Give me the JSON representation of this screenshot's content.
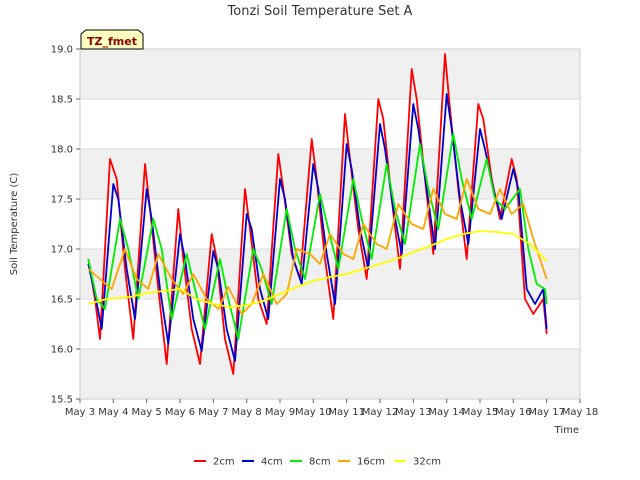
{
  "chart_data": {
    "type": "line",
    "title": "Tonzi Soil Temperature Set A",
    "xlabel": "Time",
    "ylabel": "Soil Temperature (C)",
    "tag": "TZ_fmet",
    "xlim": [
      3,
      18
    ],
    "ylim": [
      15.5,
      19.0
    ],
    "xticks": [
      {
        "value": 3,
        "label": "May 3"
      },
      {
        "value": 4,
        "label": "May 4"
      },
      {
        "value": 5,
        "label": "May 5"
      },
      {
        "value": 6,
        "label": "May 6"
      },
      {
        "value": 7,
        "label": "May 7"
      },
      {
        "value": 8,
        "label": "May 8"
      },
      {
        "value": 9,
        "label": "May 9"
      },
      {
        "value": 10,
        "label": "May 10"
      },
      {
        "value": 11,
        "label": "May 11"
      },
      {
        "value": 12,
        "label": "May 12"
      },
      {
        "value": 13,
        "label": "May 13"
      },
      {
        "value": 14,
        "label": "May 14"
      },
      {
        "value": 15,
        "label": "May 15"
      },
      {
        "value": 16,
        "label": "May 16"
      },
      {
        "value": 17,
        "label": "May 17"
      },
      {
        "value": 18,
        "label": "May 18"
      }
    ],
    "yticks": [
      {
        "value": 15.5,
        "label": "15.5"
      },
      {
        "value": 16.0,
        "label": "16.0"
      },
      {
        "value": 16.5,
        "label": "16.5"
      },
      {
        "value": 17.0,
        "label": "17.0"
      },
      {
        "value": 17.5,
        "label": "17.5"
      },
      {
        "value": 18.0,
        "label": "18.0"
      },
      {
        "value": 18.5,
        "label": "18.5"
      },
      {
        "value": 19.0,
        "label": "19.0"
      }
    ],
    "grid": true,
    "legend_position": "bottom",
    "series": [
      {
        "name": "2cm",
        "color": "#ff0000",
        "x": [
          3.25,
          3.45,
          3.6,
          3.9,
          4.1,
          4.35,
          4.6,
          4.95,
          5.1,
          5.35,
          5.6,
          5.95,
          6.1,
          6.35,
          6.6,
          6.95,
          7.1,
          7.35,
          7.6,
          7.95,
          8.1,
          8.35,
          8.6,
          8.95,
          9.1,
          9.35,
          9.6,
          9.95,
          10.1,
          10.35,
          10.6,
          10.95,
          11.1,
          11.35,
          11.6,
          11.95,
          12.1,
          12.35,
          12.6,
          12.95,
          13.1,
          13.35,
          13.6,
          13.95,
          14.1,
          14.35,
          14.6,
          14.95,
          15.1,
          15.35,
          15.6,
          15.95,
          16.1,
          16.35,
          16.6,
          16.9,
          17.0
        ],
        "y": [
          16.9,
          16.5,
          16.1,
          17.9,
          17.7,
          16.8,
          16.1,
          17.85,
          17.4,
          16.6,
          15.85,
          17.4,
          16.9,
          16.2,
          15.85,
          17.15,
          16.9,
          16.1,
          15.75,
          17.6,
          17.2,
          16.5,
          16.25,
          17.95,
          17.6,
          16.95,
          16.7,
          18.1,
          17.7,
          16.9,
          16.3,
          18.35,
          17.9,
          17.2,
          16.7,
          18.5,
          18.3,
          17.5,
          16.8,
          18.8,
          18.5,
          17.7,
          16.95,
          18.95,
          18.4,
          17.6,
          16.9,
          18.45,
          18.3,
          17.7,
          17.3,
          17.9,
          17.7,
          16.5,
          16.35,
          16.5,
          16.15
        ]
      },
      {
        "name": "4cm",
        "color": "#0000cc",
        "x": [
          3.25,
          3.45,
          3.65,
          4.0,
          4.15,
          4.4,
          4.65,
          5.0,
          5.15,
          5.4,
          5.65,
          6.0,
          6.15,
          6.4,
          6.65,
          7.0,
          7.15,
          7.4,
          7.65,
          8.0,
          8.15,
          8.4,
          8.65,
          9.0,
          9.15,
          9.4,
          9.65,
          10.0,
          10.15,
          10.4,
          10.65,
          11.0,
          11.15,
          11.4,
          11.65,
          12.0,
          12.15,
          12.4,
          12.65,
          13.0,
          13.15,
          13.4,
          13.65,
          14.0,
          14.15,
          14.4,
          14.65,
          15.0,
          15.15,
          15.4,
          15.65,
          16.0,
          16.15,
          16.4,
          16.65,
          16.9,
          17.0
        ],
        "y": [
          16.85,
          16.55,
          16.2,
          17.65,
          17.5,
          16.8,
          16.3,
          17.6,
          17.3,
          16.6,
          16.05,
          17.15,
          16.9,
          16.3,
          15.98,
          16.98,
          16.8,
          16.2,
          15.88,
          17.35,
          17.2,
          16.6,
          16.3,
          17.7,
          17.5,
          16.9,
          16.65,
          17.85,
          17.6,
          16.95,
          16.45,
          18.05,
          17.8,
          17.2,
          16.8,
          18.25,
          18.0,
          17.4,
          16.95,
          18.45,
          18.2,
          17.6,
          17.0,
          18.55,
          18.2,
          17.5,
          17.05,
          18.2,
          18.0,
          17.6,
          17.3,
          17.8,
          17.6,
          16.6,
          16.45,
          16.6,
          16.2
        ]
      },
      {
        "name": "8cm",
        "color": "#00ee00",
        "x": [
          3.25,
          3.5,
          3.75,
          4.2,
          4.45,
          4.75,
          5.2,
          5.45,
          5.75,
          6.2,
          6.45,
          6.75,
          7.2,
          7.45,
          7.75,
          8.2,
          8.45,
          8.75,
          9.2,
          9.45,
          9.75,
          10.2,
          10.45,
          10.75,
          11.2,
          11.45,
          11.75,
          12.2,
          12.45,
          12.75,
          13.2,
          13.45,
          13.75,
          14.2,
          14.45,
          14.75,
          15.2,
          15.45,
          15.75,
          16.2,
          16.45,
          16.7,
          16.95,
          17.0
        ],
        "y": [
          16.9,
          16.5,
          16.4,
          17.3,
          17.0,
          16.5,
          17.3,
          17.0,
          16.3,
          16.95,
          16.6,
          16.2,
          16.9,
          16.5,
          16.1,
          17.0,
          16.8,
          16.45,
          17.4,
          17.0,
          16.7,
          17.55,
          17.2,
          16.8,
          17.7,
          17.3,
          16.9,
          17.85,
          17.4,
          17.05,
          18.05,
          17.6,
          17.2,
          18.15,
          17.7,
          17.3,
          17.9,
          17.5,
          17.4,
          17.6,
          17.0,
          16.65,
          16.6,
          16.45
        ]
      },
      {
        "name": "16cm",
        "color": "#ffa500",
        "x": [
          3.25,
          3.6,
          3.95,
          4.35,
          4.7,
          5.05,
          5.35,
          5.75,
          6.1,
          6.4,
          6.8,
          7.15,
          7.45,
          7.85,
          8.15,
          8.5,
          8.9,
          9.2,
          9.5,
          9.9,
          10.2,
          10.5,
          10.9,
          11.2,
          11.5,
          11.9,
          12.2,
          12.55,
          12.95,
          13.3,
          13.6,
          13.95,
          14.3,
          14.6,
          14.95,
          15.3,
          15.6,
          15.95,
          16.3,
          16.6,
          16.85,
          17.0
        ],
        "y": [
          16.8,
          16.7,
          16.6,
          17.0,
          16.7,
          16.6,
          16.95,
          16.7,
          16.55,
          16.75,
          16.5,
          16.4,
          16.62,
          16.35,
          16.45,
          16.75,
          16.45,
          16.55,
          17.0,
          16.95,
          16.85,
          17.15,
          16.95,
          16.9,
          17.25,
          17.05,
          17.0,
          17.45,
          17.25,
          17.2,
          17.6,
          17.35,
          17.3,
          17.7,
          17.4,
          17.35,
          17.6,
          17.35,
          17.45,
          17.1,
          16.85,
          16.7
        ]
      },
      {
        "name": "32cm",
        "color": "#ffff00",
        "x": [
          3.25,
          3.8,
          4.5,
          5.0,
          5.5,
          6.0,
          6.5,
          7.0,
          7.5,
          8.0,
          8.5,
          9.0,
          9.5,
          10.0,
          10.5,
          11.0,
          11.5,
          12.0,
          12.5,
          13.0,
          13.5,
          14.0,
          14.5,
          15.0,
          15.5,
          16.0,
          16.5,
          17.0
        ],
        "y": [
          16.45,
          16.5,
          16.52,
          16.56,
          16.58,
          16.6,
          16.5,
          16.45,
          16.42,
          16.44,
          16.48,
          16.55,
          16.62,
          16.68,
          16.72,
          16.75,
          16.8,
          16.85,
          16.9,
          16.97,
          17.03,
          17.1,
          17.15,
          17.18,
          17.17,
          17.15,
          17.05,
          16.88
        ]
      }
    ]
  }
}
